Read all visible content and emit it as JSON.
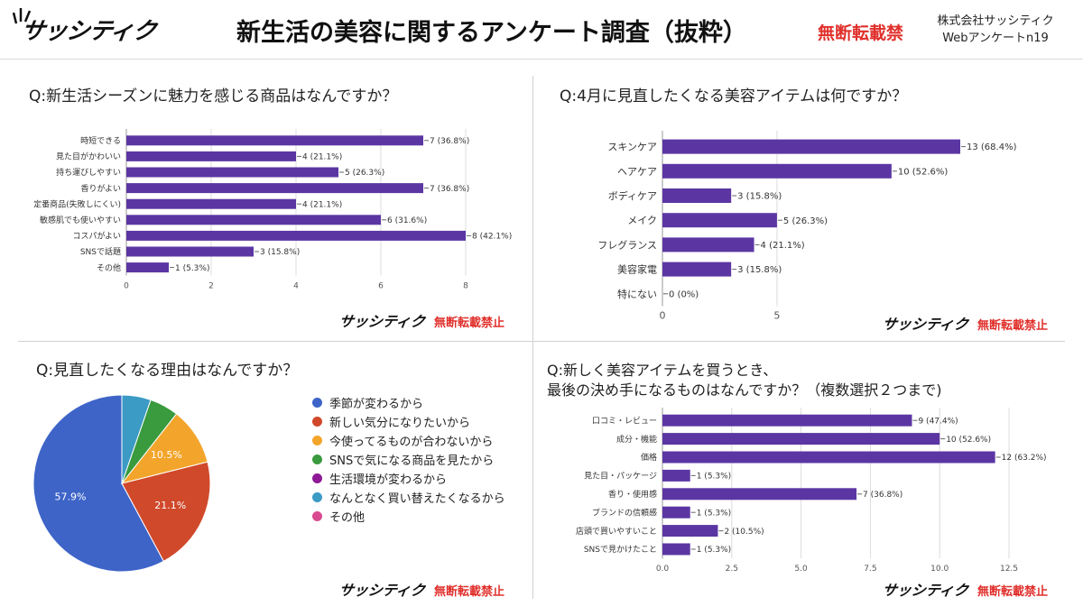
{
  "header": {
    "logo": "サッシティク",
    "title": "新生活の美容に関するアンケート調査（抜粋）",
    "ban": "無断転載禁",
    "company": "株式会社サッシティク",
    "survey": "Webアンケートn19"
  },
  "watermark": {
    "logo": "サッシティク",
    "ban": "無断転載禁止"
  },
  "chart_data": [
    {
      "type": "bar",
      "orientation": "horizontal",
      "title": "Q:新生活シーズンに魅力を感じる商品はなんですか？",
      "categories": [
        "時短できる",
        "見た目がかわいい",
        "持ち運びしやすい",
        "香りがよい",
        "定番商品(失敗しにくい)",
        "敏感肌でも使いやすい",
        "コスパがよい",
        "SNSで話題",
        "その他"
      ],
      "values": [
        7,
        4,
        5,
        7,
        4,
        6,
        8,
        3,
        1
      ],
      "labels": [
        "7 (36.8%)",
        "4 (21.1%)",
        "5 (26.3%)",
        "7 (36.8%)",
        "4 (21.1%)",
        "6 (31.6%)",
        "8 (42.1%)",
        "3 (15.8%)",
        "1 (5.3%)"
      ],
      "xlim": [
        0,
        8
      ],
      "xticks": [
        "0",
        "2",
        "4",
        "6",
        "8"
      ],
      "color": "#5b36a3",
      "grid": true
    },
    {
      "type": "bar",
      "orientation": "horizontal",
      "title": "Q:4月に見直したくなる美容アイテムは何ですか？",
      "categories": [
        "スキンケア",
        "ヘアケア",
        "ボディケア",
        "メイク",
        "フレグランス",
        "美容家電",
        "特にない"
      ],
      "values": [
        13,
        10,
        3,
        5,
        4,
        3,
        0
      ],
      "labels": [
        "13 (68.4%)",
        "10 (52.6%)",
        "3 (15.8%)",
        "5 (26.3%)",
        "4 (21.1%)",
        "3 (15.8%)",
        "0 (0%)"
      ],
      "xlim": [
        0,
        13
      ],
      "xticks": [
        "0",
        "5"
      ],
      "color": "#5b36a3",
      "grid": true
    },
    {
      "type": "pie",
      "title": "Q:見直したくなる理由はなんですか？",
      "categories": [
        "季節が変わるから",
        "新しい気分になりたいから",
        "今使ってるものが合わないから",
        "SNSで気になる商品を見たから",
        "生活環境が変わるから",
        "なんとなく買い替えたくなるから",
        "その他"
      ],
      "values": [
        57.9,
        21.1,
        10.5,
        5.3,
        0,
        5.3,
        0
      ],
      "slice_labels": [
        "57.9%",
        "21.1%",
        "10.5%",
        "",
        "",
        "",
        ""
      ],
      "colors": [
        "#3e64c8",
        "#d0492b",
        "#f3a52b",
        "#3a9a3e",
        "#8e1a96",
        "#3b9bc4",
        "#d84a8f"
      ],
      "legend": "right"
    },
    {
      "type": "bar",
      "orientation": "horizontal",
      "title": "Q:新しく美容アイテムを買うとき、",
      "subtitle": "最後の決め手になるものはなんですか？（複数選択２つまで)",
      "categories": [
        "口コミ・レビュー",
        "成分・機能",
        "価格",
        "見た目・パッケージ",
        "香り・使用感",
        "ブランドの信頼感",
        "店頭で買いやすいこと",
        "SNSで見かけたこと"
      ],
      "values": [
        9,
        10,
        12,
        1,
        7,
        1,
        2,
        1
      ],
      "labels": [
        "9 (47.4%)",
        "10 (52.6%)",
        "12 (63.2%)",
        "1 (5.3%)",
        "7 (36.8%)",
        "1 (5.3%)",
        "2 (10.5%)",
        "1 (5.3%)"
      ],
      "xlim": [
        0,
        12.5
      ],
      "xticks": [
        "0.0",
        "2.5",
        "5.0",
        "7.5",
        "10.0",
        "12.5"
      ],
      "color": "#5b36a3",
      "grid": true
    }
  ]
}
